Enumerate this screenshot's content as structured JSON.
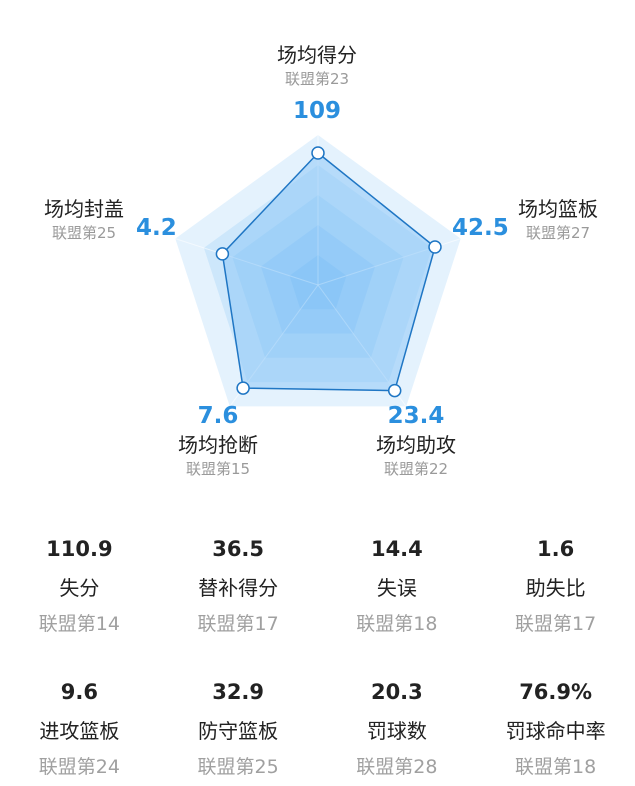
{
  "radar": {
    "max_value_note": "",
    "axes": [
      {
        "key": "pts",
        "name": "场均得分",
        "rank": "联盟第23",
        "value": "109",
        "level": 0.88
      },
      {
        "key": "reb",
        "name": "场均篮板",
        "rank": "联盟第27",
        "value": "42.5",
        "level": 0.82
      },
      {
        "key": "ast",
        "name": "场均助攻",
        "rank": "联盟第22",
        "value": "23.4",
        "level": 0.87
      },
      {
        "key": "stl",
        "name": "场均抢断",
        "rank": "联盟第15",
        "value": "7.6",
        "level": 0.85
      },
      {
        "key": "blk",
        "name": "场均封盖",
        "rank": "联盟第25",
        "value": "4.2",
        "level": 0.67
      }
    ]
  },
  "stats": {
    "row1": [
      {
        "value": "110.9",
        "name": "失分",
        "rank": "联盟第14"
      },
      {
        "value": "36.5",
        "name": "替补得分",
        "rank": "联盟第17"
      },
      {
        "value": "14.4",
        "name": "失误",
        "rank": "联盟第18"
      },
      {
        "value": "1.6",
        "name": "助失比",
        "rank": "联盟第17"
      }
    ],
    "row2": [
      {
        "value": "9.6",
        "name": "进攻篮板",
        "rank": "联盟第24"
      },
      {
        "value": "32.9",
        "name": "防守篮板",
        "rank": "联盟第25"
      },
      {
        "value": "20.3",
        "name": "罚球数",
        "rank": "联盟第28"
      },
      {
        "value": "76.9%",
        "name": "罚球命中率",
        "rank": "联盟第18"
      }
    ]
  },
  "colors": {
    "accent": "#2b8fde",
    "polygon_stroke": "#1f76c4",
    "ring_outer": "#e3f2fd",
    "ring_inner": "#8cc8f8"
  }
}
